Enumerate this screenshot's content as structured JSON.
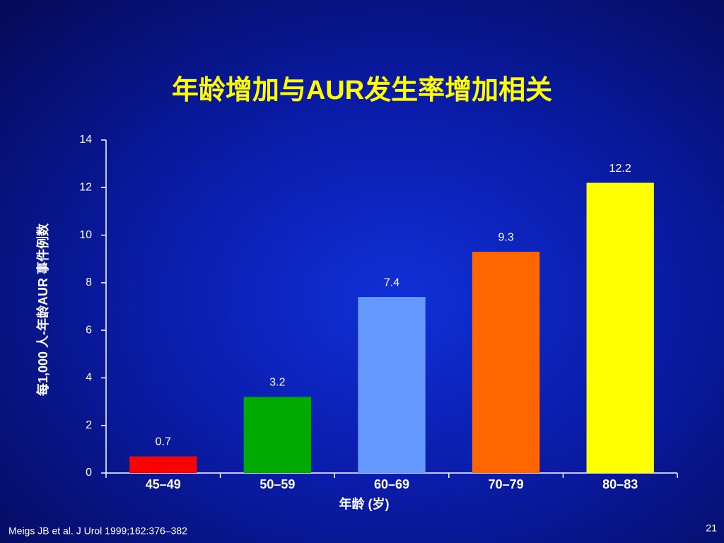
{
  "chart_data": {
    "type": "bar",
    "title": "年龄增加与AUR发生率增加相关",
    "y_label": "每1,000 人-年龄AUR 事件例数",
    "x_label": "年龄 (岁)",
    "categories": [
      "45–49",
      "50–59",
      "60–69",
      "70–79",
      "80–83"
    ],
    "values": [
      0.7,
      3.2,
      7.4,
      9.3,
      12.2
    ],
    "colors": [
      "#ff0000",
      "#00aa00",
      "#6699ff",
      "#ff6600",
      "#ffff00"
    ],
    "ylim": [
      0,
      14
    ],
    "yticks": [
      0,
      2,
      4,
      6,
      8,
      10,
      12,
      14
    ]
  },
  "footnote": "Meigs JB et al. J Urol 1999;162:376–382",
  "page_number": "21"
}
